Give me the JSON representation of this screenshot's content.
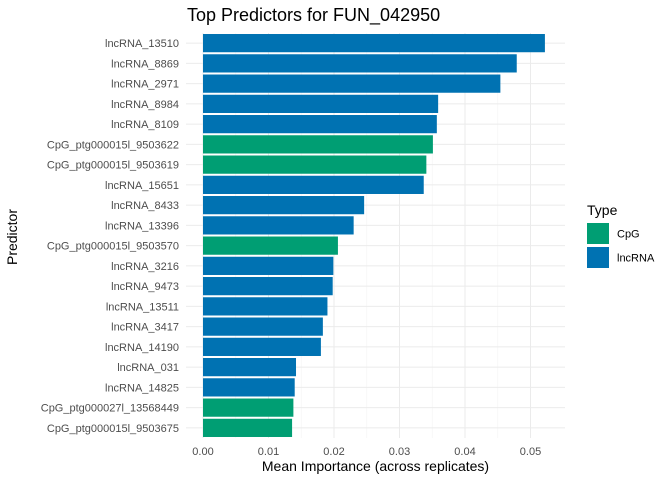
{
  "chart_data": {
    "type": "bar",
    "orientation": "horizontal",
    "title": "Top Predictors for FUN_042950",
    "xlabel": "Mean Importance (across replicates)",
    "ylabel": "Predictor",
    "xlim": [
      0,
      0.055
    ],
    "xticks": [
      "0.00",
      "0.01",
      "0.02",
      "0.03",
      "0.04",
      "0.05"
    ],
    "grid": true,
    "legend": {
      "title": "Type",
      "position": "right",
      "entries": [
        {
          "label": "CpG",
          "color": "#009E73"
        },
        {
          "label": "lncRNA",
          "color": "#0072B2"
        }
      ]
    },
    "categories": [
      "lncRNA_13510",
      "lncRNA_8869",
      "lncRNA_2971",
      "lncRNA_8984",
      "lncRNA_8109",
      "CpG_ptg000015l_9503622",
      "CpG_ptg000015l_9503619",
      "lncRNA_15651",
      "lncRNA_8433",
      "lncRNA_13396",
      "CpG_ptg000015l_9503570",
      "lncRNA_3216",
      "lncRNA_9473",
      "lncRNA_13511",
      "lncRNA_3417",
      "lncRNA_14190",
      "lncRNA_031",
      "lncRNA_14825",
      "CpG_ptg000027l_13568449",
      "CpG_ptg000015l_9503675"
    ],
    "values": [
      0.0522,
      0.0479,
      0.0454,
      0.0359,
      0.0357,
      0.0351,
      0.0341,
      0.0337,
      0.0246,
      0.023,
      0.0206,
      0.0199,
      0.0198,
      0.019,
      0.0183,
      0.018,
      0.0142,
      0.014,
      0.0138,
      0.0136
    ],
    "types": [
      "lncRNA",
      "lncRNA",
      "lncRNA",
      "lncRNA",
      "lncRNA",
      "CpG",
      "CpG",
      "lncRNA",
      "lncRNA",
      "lncRNA",
      "CpG",
      "lncRNA",
      "lncRNA",
      "lncRNA",
      "lncRNA",
      "lncRNA",
      "lncRNA",
      "lncRNA",
      "CpG",
      "CpG"
    ]
  }
}
